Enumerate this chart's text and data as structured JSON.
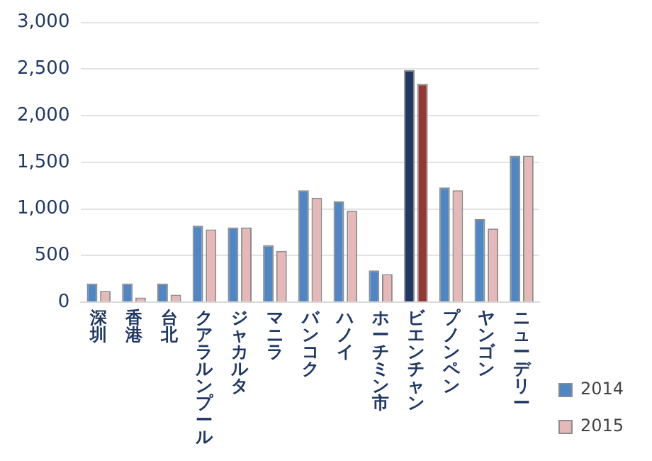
{
  "chart_data": {
    "type": "bar",
    "categories": [
      "深圳",
      "香港",
      "台北",
      "クアラルンプール",
      "ジャカルタ",
      "マニラ",
      "バンコク",
      "ハノイ",
      "ホーチミン市",
      "ビエンチャン",
      "プノンペン",
      "ヤンゴン",
      "ニューデリー"
    ],
    "series": [
      {
        "name": "2014",
        "color": "#4f86c6",
        "colors": [
          "#4f86c6",
          "#4f86c6",
          "#4f86c6",
          "#4f86c6",
          "#4f86c6",
          "#4f86c6",
          "#4f86c6",
          "#4f86c6",
          "#4f86c6",
          "#1f3864",
          "#4f86c6",
          "#4f86c6",
          "#4f86c6"
        ],
        "values": [
          200,
          200,
          200,
          820,
          800,
          610,
          1200,
          1080,
          340,
          2490,
          1230,
          890,
          1570
        ]
      },
      {
        "name": "2015",
        "color": "#e6b8b7",
        "colors": [
          "#e6b8b7",
          "#e6b8b7",
          "#e6b8b7",
          "#e6b8b7",
          "#e6b8b7",
          "#e6b8b7",
          "#e6b8b7",
          "#e6b8b7",
          "#e6b8b7",
          "#953735",
          "#e6b8b7",
          "#e6b8b7",
          "#e6b8b7"
        ],
        "values": [
          120,
          50,
          80,
          780,
          800,
          550,
          1120,
          980,
          300,
          2340,
          1200,
          790,
          1570
        ]
      }
    ],
    "ylim": [
      0,
      3000
    ],
    "yticks": [
      {
        "value": 0,
        "label": "0"
      },
      {
        "value": 500,
        "label": "500"
      },
      {
        "value": 1000,
        "label": "1,000"
      },
      {
        "value": 1500,
        "label": "1,500"
      },
      {
        "value": 2000,
        "label": "2,000"
      },
      {
        "value": 2500,
        "label": "2,500"
      },
      {
        "value": 3000,
        "label": "3,000"
      }
    ],
    "grid": "y",
    "legend": "right"
  }
}
